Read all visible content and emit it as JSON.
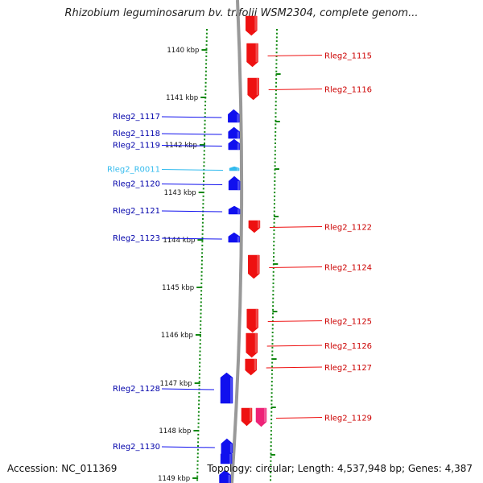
{
  "header": {
    "title": "Rhizobium leguminosarum bv. trifolii WSM2304, complete genom..."
  },
  "footer": {
    "accession": "Accession: NC_011369",
    "summary": "Topology: circular; Length: 4,537,948 bp; Genes: 4,387"
  },
  "colors": {
    "minus_strand": "#1010ee",
    "plus_strand": "#ee1111",
    "rna": "#33bbee",
    "pseudo": "#ee2277",
    "ruler": "#118811",
    "chromosome": "#999999"
  },
  "ruler": {
    "labels": [
      "1140 kbp",
      "1141 kbp",
      "1142 kbp",
      "1143 kbp",
      "1144 kbp",
      "1145 kbp",
      "1146 kbp",
      "1147 kbp",
      "1148 kbp",
      "1149 kbp"
    ]
  },
  "genes": [
    {
      "id": "g0",
      "name": "",
      "strand": "+",
      "type": "cds",
      "y1": 20,
      "y2": 44
    },
    {
      "id": "g1115",
      "name": "Rleg2_1115",
      "strand": "+",
      "type": "cds",
      "y1": 54,
      "y2": 83
    },
    {
      "id": "g1116",
      "name": "Rleg2_1116",
      "strand": "+",
      "type": "cds",
      "y1": 97,
      "y2": 124
    },
    {
      "id": "g1117",
      "name": "Rleg2_1117",
      "strand": "-",
      "type": "cds",
      "y1": 136,
      "y2": 152
    },
    {
      "id": "g1118",
      "name": "Rleg2_1118",
      "strand": "-",
      "type": "cds",
      "y1": 158,
      "y2": 172
    },
    {
      "id": "g1119",
      "name": "Rleg2_1119",
      "strand": "-",
      "type": "cds",
      "y1": 173,
      "y2": 186
    },
    {
      "id": "gR0011",
      "name": "Rleg2_R0011",
      "strand": "-",
      "type": "rna",
      "y1": 207,
      "y2": 212
    },
    {
      "id": "g1120",
      "name": "Rleg2_1120",
      "strand": "-",
      "type": "cds",
      "y1": 219,
      "y2": 236
    },
    {
      "id": "g1121",
      "name": "Rleg2_1121",
      "strand": "-",
      "type": "cds",
      "y1": 256,
      "y2": 266
    },
    {
      "id": "g1122",
      "name": "Rleg2_1122",
      "strand": "+",
      "type": "cds",
      "y1": 274,
      "y2": 289
    },
    {
      "id": "g1123",
      "name": "Rleg2_1123",
      "strand": "-",
      "type": "cds",
      "y1": 289,
      "y2": 301
    },
    {
      "id": "g1124",
      "name": "Rleg2_1124",
      "strand": "+",
      "type": "cds",
      "y1": 317,
      "y2": 346
    },
    {
      "id": "g1125",
      "name": "Rleg2_1125",
      "strand": "+",
      "type": "cds",
      "y1": 384,
      "y2": 413
    },
    {
      "id": "g1126",
      "name": "Rleg2_1126",
      "strand": "+",
      "type": "cds",
      "y1": 414,
      "y2": 444
    },
    {
      "id": "g1127",
      "name": "Rleg2_1127",
      "strand": "+",
      "type": "cds",
      "y1": 446,
      "y2": 466
    },
    {
      "id": "g1128",
      "name": "Rleg2_1128",
      "strand": "-",
      "type": "cds",
      "y1": 463,
      "y2": 501
    },
    {
      "id": "g1129a",
      "name": "",
      "strand": "+",
      "type": "cds",
      "y1": 507,
      "y2": 529
    },
    {
      "id": "g1129",
      "name": "Rleg2_1129",
      "strand": "+",
      "type": "pseudo",
      "y1": 507,
      "y2": 530
    },
    {
      "id": "g1130",
      "name": "Rleg2_1130",
      "strand": "-",
      "type": "cds",
      "y1": 545,
      "y2": 563
    },
    {
      "id": "g1131",
      "name": "",
      "strand": "-",
      "type": "cds",
      "y1": 558,
      "y2": 576
    },
    {
      "id": "g1132",
      "name": "",
      "strand": "-",
      "type": "cds",
      "y1": 584,
      "y2": 600
    }
  ]
}
